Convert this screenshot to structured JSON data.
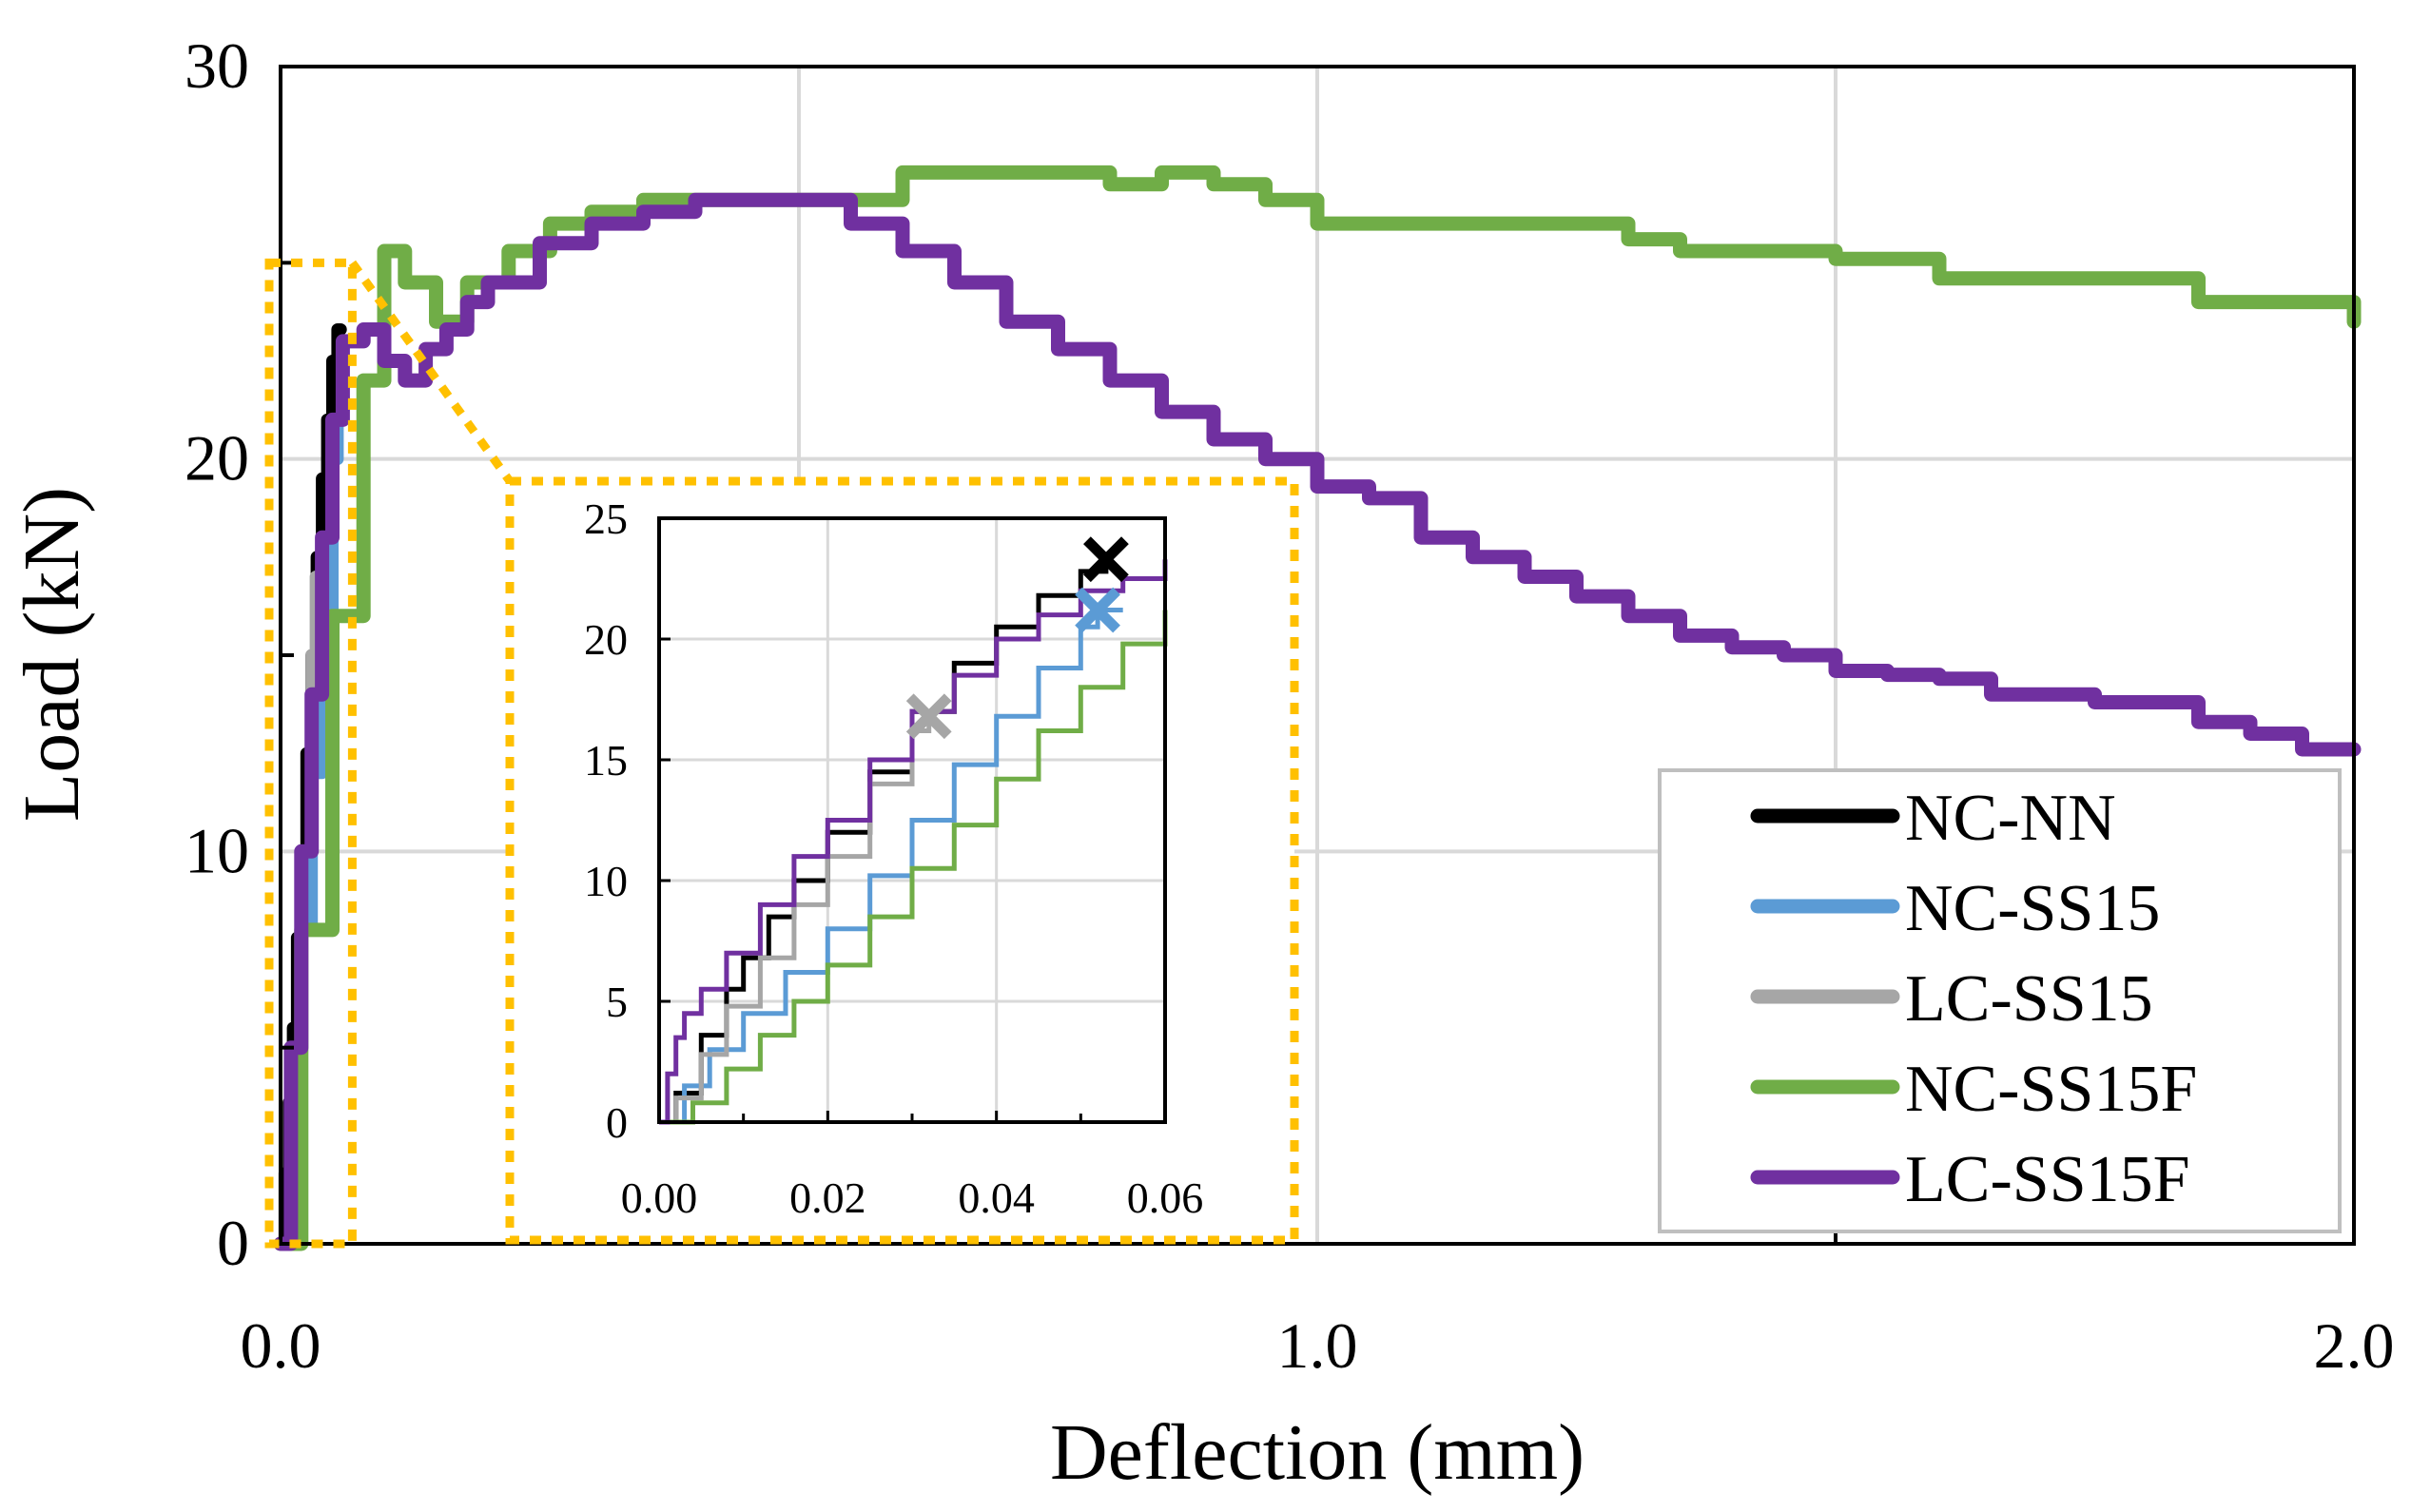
{
  "chart_data": [
    {
      "type": "line",
      "xlabel": "Deflection (mm)",
      "ylabel": "Load (kN)",
      "xlim": [
        0,
        2
      ],
      "ylim": [
        0,
        30
      ],
      "x_ticks": [
        "0.0",
        "1.0",
        "2.0"
      ],
      "y_ticks": [
        "0",
        "10",
        "20",
        "30"
      ],
      "grid": true,
      "legend": "bottom-right",
      "series": [
        {
          "name": "NC-NN",
          "color": "#000000",
          "x": [
            0,
            0.004,
            0.008,
            0.012,
            0.016,
            0.02,
            0.025,
            0.03,
            0.035,
            0.04,
            0.045,
            0.05,
            0.055,
            0.058
          ],
          "y": [
            0,
            1.8,
            3.6,
            5.5,
            7.8,
            10,
            12.5,
            15,
            17.5,
            19.5,
            21,
            22.5,
            23.3,
            23.3
          ]
        },
        {
          "name": "NC-SS15",
          "color": "#5b9bd5",
          "x": [
            0,
            0.01,
            0.02,
            0.03,
            0.04,
            0.05,
            0.055
          ],
          "y": [
            0,
            4,
            8,
            12,
            16,
            20,
            21
          ]
        },
        {
          "name": "LC-SS15",
          "color": "#a6a6a6",
          "x": [
            0,
            0.01,
            0.02,
            0.03,
            0.034
          ],
          "y": [
            0,
            5,
            10,
            15,
            17
          ]
        },
        {
          "name": "NC-SS15F",
          "color": "#70ad47",
          "x": [
            0,
            0.02,
            0.05,
            0.08,
            0.1,
            0.12,
            0.15,
            0.18,
            0.22,
            0.26,
            0.3,
            0.35,
            0.4,
            0.45,
            0.5,
            0.55,
            0.6,
            0.65,
            0.7,
            0.75,
            0.8,
            0.85,
            0.9,
            0.95,
            1.0,
            1.05,
            1.1,
            1.15,
            1.2,
            1.25,
            1.3,
            1.35,
            1.4,
            1.45,
            1.5,
            1.55,
            1.6,
            1.65,
            1.7,
            1.75,
            1.8,
            1.85,
            1.9,
            1.95,
            2.0
          ],
          "y": [
            0,
            8,
            16,
            22,
            25.3,
            24.5,
            23.5,
            24.5,
            25.3,
            26,
            26.3,
            26.6,
            26.6,
            26.6,
            26.6,
            26.6,
            27.3,
            27.3,
            27.3,
            27.3,
            27.0,
            27.3,
            27.0,
            26.6,
            26.0,
            26.0,
            26.0,
            26.0,
            26.0,
            26.0,
            25.6,
            25.3,
            25.3,
            25.3,
            25.1,
            25.1,
            24.6,
            24.6,
            24.6,
            24.6,
            24.6,
            24.0,
            24.0,
            24.0,
            23.5
          ]
        },
        {
          "name": "LC-SS15F",
          "color": "#7030a0",
          "x": [
            0,
            0.01,
            0.02,
            0.03,
            0.04,
            0.05,
            0.06,
            0.08,
            0.1,
            0.12,
            0.14,
            0.16,
            0.18,
            0.2,
            0.25,
            0.3,
            0.35,
            0.4,
            0.45,
            0.5,
            0.55,
            0.6,
            0.65,
            0.7,
            0.75,
            0.8,
            0.85,
            0.9,
            0.95,
            1.0,
            1.05,
            1.1,
            1.15,
            1.2,
            1.25,
            1.3,
            1.35,
            1.4,
            1.45,
            1.5,
            1.55,
            1.6,
            1.65,
            1.7,
            1.75,
            1.8,
            1.85,
            1.9,
            1.95,
            2.0
          ],
          "y": [
            0,
            5,
            10,
            14,
            18,
            21,
            23,
            23.3,
            22.5,
            22,
            22.8,
            23.3,
            24,
            24.5,
            25.5,
            26,
            26.3,
            26.6,
            26.6,
            26.6,
            26.0,
            25.3,
            24.5,
            23.5,
            22.8,
            22.0,
            21.2,
            20.5,
            20.0,
            19.3,
            19.0,
            18.0,
            17.5,
            17.0,
            16.5,
            16.0,
            15.5,
            15.2,
            15.0,
            14.6,
            14.5,
            14.4,
            14.0,
            14.0,
            13.8,
            13.8,
            13.3,
            13.0,
            12.6,
            12.6
          ]
        }
      ],
      "failure_markers": [
        {
          "series": "NC-NN",
          "symbol": "×",
          "color": "#000000",
          "x": 0.053,
          "y": 23.3
        },
        {
          "series": "NC-SS15",
          "symbol": "×",
          "color": "#5b9bd5",
          "x": 0.052,
          "y": 21.2
        },
        {
          "series": "LC-SS15",
          "symbol": "×",
          "color": "#a6a6a6",
          "x": 0.032,
          "y": 16.8
        }
      ],
      "zoom_box": {
        "color": "#ffc000",
        "xlim": [
          0,
          0.06
        ],
        "ylim": [
          0,
          25
        ]
      }
    },
    {
      "type": "line",
      "inset": true,
      "xlim": [
        0,
        0.06
      ],
      "ylim": [
        0,
        25
      ],
      "x_ticks": [
        "0.00",
        "0.02",
        "0.04",
        "0.06"
      ],
      "y_ticks": [
        "0",
        "5",
        "10",
        "15",
        "20",
        "25"
      ],
      "grid": true,
      "series": [
        {
          "name": "NC-NN",
          "color": "#000000",
          "x": [
            0,
            0.002,
            0.005,
            0.008,
            0.01,
            0.013,
            0.016,
            0.02,
            0.025,
            0.03,
            0.035,
            0.04,
            0.045,
            0.05,
            0.053
          ],
          "y": [
            0,
            1.2,
            3.6,
            5.5,
            6.8,
            8.5,
            10,
            12,
            14.5,
            17,
            19,
            20.5,
            21.8,
            22.8,
            23.3
          ]
        },
        {
          "name": "NC-SS15",
          "color": "#5b9bd5",
          "x": [
            0,
            0.003,
            0.006,
            0.01,
            0.015,
            0.02,
            0.025,
            0.03,
            0.035,
            0.04,
            0.045,
            0.05,
            0.052,
            0.055
          ],
          "y": [
            0,
            1.5,
            3,
            4.5,
            6.2,
            8,
            10.2,
            12.5,
            14.8,
            16.8,
            18.8,
            20.5,
            21.2,
            21.2
          ]
        },
        {
          "name": "LC-SS15",
          "color": "#a6a6a6",
          "x": [
            0,
            0.002,
            0.005,
            0.008,
            0.012,
            0.016,
            0.02,
            0.025,
            0.03,
            0.032
          ],
          "y": [
            0,
            1,
            2.8,
            4.8,
            6.8,
            9,
            11,
            14,
            16.2,
            16.8
          ]
        },
        {
          "name": "NC-SS15F",
          "color": "#70ad47",
          "x": [
            0,
            0.004,
            0.008,
            0.012,
            0.016,
            0.02,
            0.025,
            0.03,
            0.035,
            0.04,
            0.045,
            0.05,
            0.055,
            0.06
          ],
          "y": [
            0,
            0.8,
            2.2,
            3.6,
            5,
            6.5,
            8.5,
            10.5,
            12.3,
            14.2,
            16.2,
            18,
            19.8,
            21.2
          ]
        },
        {
          "name": "LC-SS15F",
          "color": "#7030a0",
          "x": [
            0,
            0.001,
            0.002,
            0.003,
            0.005,
            0.008,
            0.012,
            0.016,
            0.02,
            0.025,
            0.03,
            0.035,
            0.04,
            0.045,
            0.05,
            0.055,
            0.06
          ],
          "y": [
            0,
            2,
            3.5,
            4.5,
            5.5,
            7,
            9,
            11,
            12.5,
            15,
            17,
            18.5,
            20,
            21,
            22,
            22.5,
            23.3
          ]
        }
      ]
    }
  ]
}
